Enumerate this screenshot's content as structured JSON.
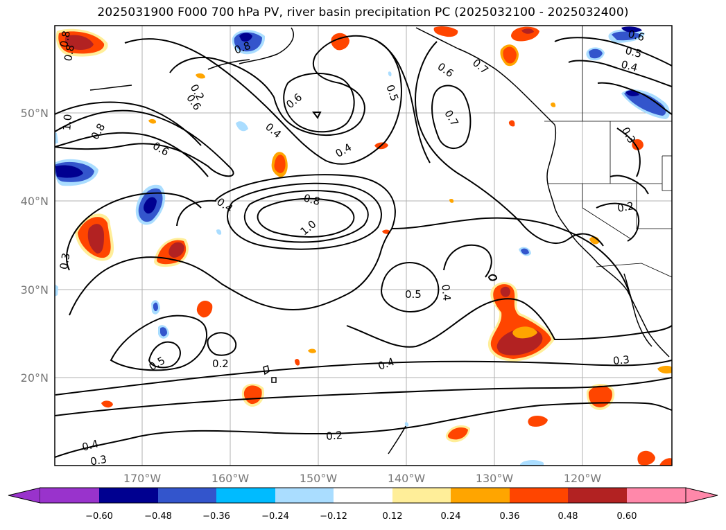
{
  "title": "2025031900 F000 700 hPa PV, river basin precipitation PC (2025032100 - 2025032400)",
  "map": {
    "lat_labels": [
      "50°N",
      "40°N",
      "30°N",
      "20°N"
    ],
    "lon_labels": [
      "170°W",
      "160°W",
      "150°W",
      "140°W",
      "130°W",
      "120°W"
    ],
    "contour_labels": [
      "0.8",
      "0.8",
      "0.6",
      "0.4",
      "0.5",
      "0.6",
      "0.7",
      "0.6",
      "0.4",
      "0.8",
      "1.0",
      "0.8",
      "0.6",
      "0.4",
      "0.4",
      "0.8",
      "1.0",
      "0.3",
      "0.5",
      "0.4",
      "0.2",
      "0.3",
      "0.5",
      "0.2",
      "0.4",
      "0.2",
      "0.3",
      "0.2",
      "0.3",
      "0.6",
      "0.5",
      "0.4",
      "0.7"
    ]
  },
  "colorbar": {
    "ticks": [
      "−0.60",
      "−0.48",
      "−0.36",
      "−0.24",
      "−0.12",
      "0.12",
      "0.24",
      "0.36",
      "0.48",
      "0.60"
    ],
    "colors": [
      "#9933cc",
      "#000090",
      "#3355cc",
      "#00bbff",
      "#aaddff",
      "#ffffff",
      "#ffee99",
      "#ffa500",
      "#ff4500",
      "#b22222",
      "#ff88aa"
    ]
  }
}
